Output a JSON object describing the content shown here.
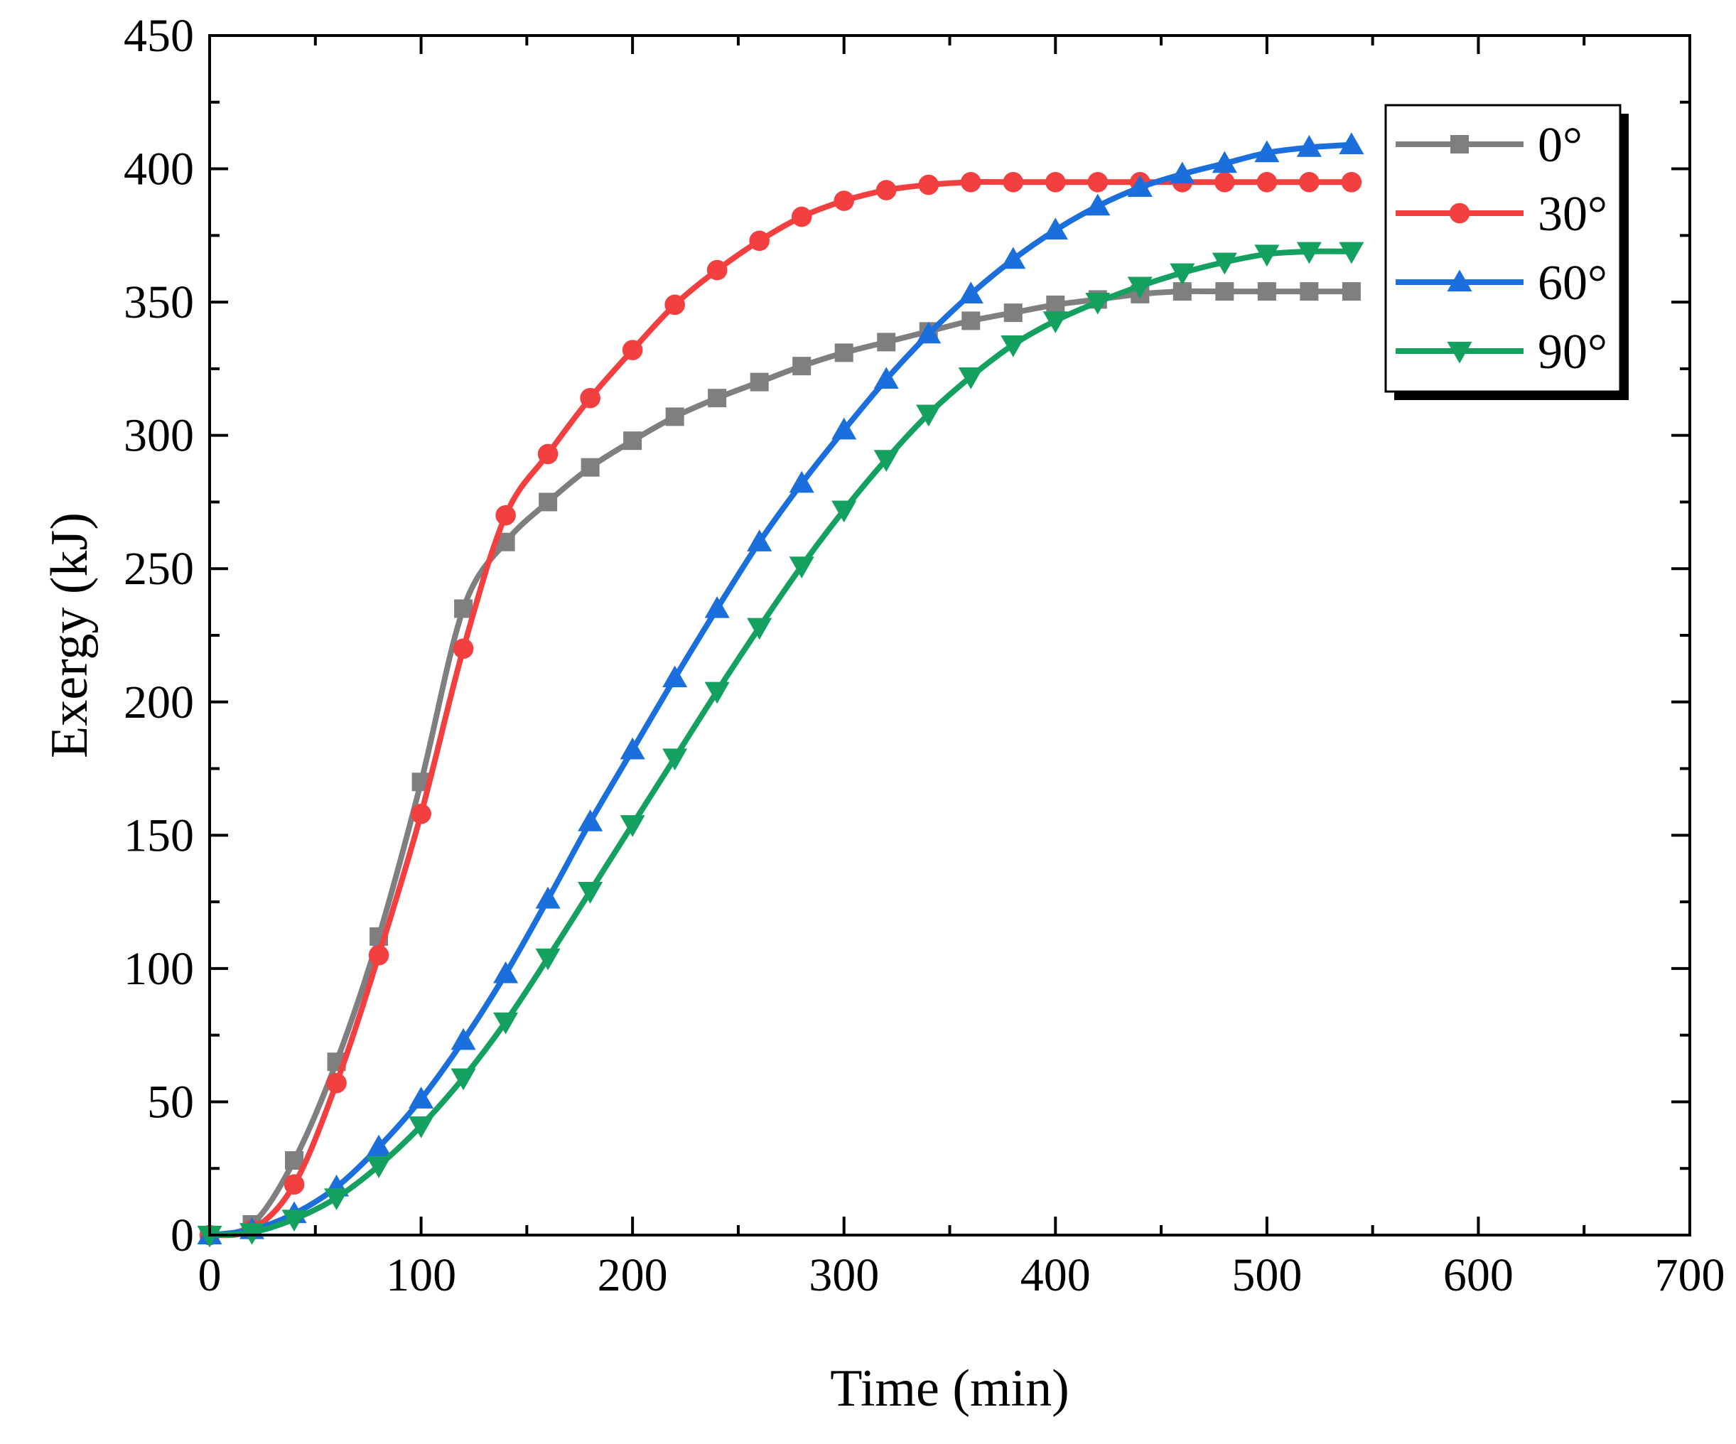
{
  "chart_data": {
    "type": "line",
    "title": "",
    "xlabel": "Time (min)",
    "ylabel": "Exergy (kJ)",
    "xlim": [
      0,
      700
    ],
    "ylim": [
      0,
      450
    ],
    "xticks": [
      0,
      100,
      200,
      300,
      400,
      500,
      600,
      700
    ],
    "yticks": [
      0,
      50,
      100,
      150,
      200,
      250,
      300,
      350,
      400,
      450
    ],
    "legend_position": "top-right",
    "x": [
      0,
      20,
      40,
      60,
      80,
      100,
      120,
      140,
      160,
      180,
      200,
      220,
      240,
      260,
      280,
      300,
      320,
      340,
      360,
      380,
      400,
      420,
      440,
      460,
      480,
      500,
      520,
      540
    ],
    "series": [
      {
        "name": "0°",
        "color": "#7f7f7f",
        "marker": "square",
        "values": [
          0,
          4,
          28,
          65,
          112,
          170,
          235,
          260,
          275,
          288,
          298,
          307,
          314,
          320,
          326,
          331,
          335,
          339,
          343,
          346,
          349,
          351,
          353,
          354,
          354,
          354,
          354,
          354
        ]
      },
      {
        "name": "30°",
        "color": "#f23f3f",
        "marker": "circle",
        "values": [
          0,
          2,
          19,
          57,
          105,
          158,
          220,
          270,
          293,
          314,
          332,
          349,
          362,
          373,
          382,
          388,
          392,
          394,
          395,
          395,
          395,
          395,
          395,
          395,
          395,
          395,
          395,
          395
        ]
      },
      {
        "name": "60°",
        "color": "#1a6fdc",
        "marker": "triangle-up",
        "values": [
          0,
          2,
          8,
          18,
          33,
          51,
          73,
          98,
          126,
          155,
          182,
          209,
          235,
          260,
          282,
          302,
          321,
          338,
          353,
          366,
          377,
          386,
          393,
          398,
          402,
          406,
          408,
          409
        ]
      },
      {
        "name": "90°",
        "color": "#14a05f",
        "marker": "triangle-down",
        "values": [
          0,
          1,
          6,
          14,
          26,
          41,
          59,
          80,
          104,
          129,
          154,
          179,
          204,
          228,
          251,
          272,
          291,
          308,
          322,
          334,
          343,
          350,
          356,
          361,
          365,
          368,
          369,
          369
        ]
      }
    ]
  }
}
